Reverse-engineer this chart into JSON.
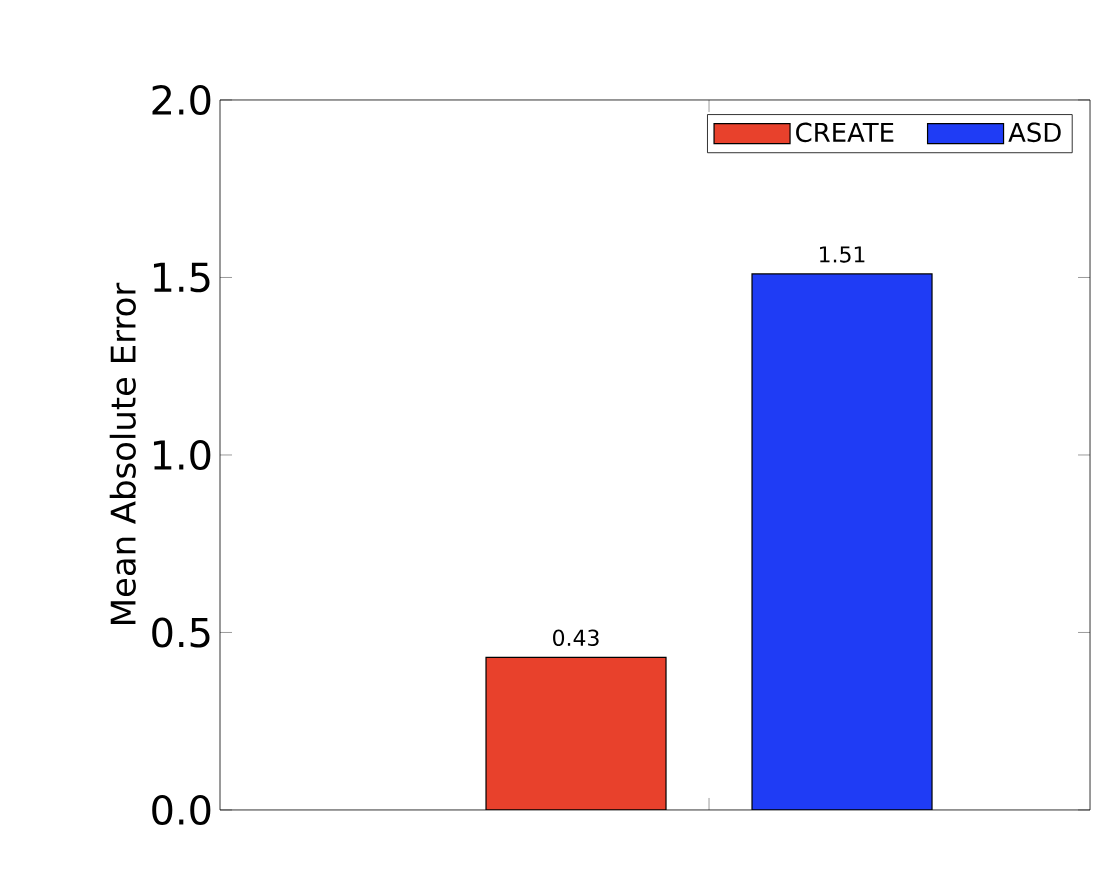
{
  "chart_data": {
    "type": "bar",
    "ylabel": "Mean Absolute Error",
    "categories": [
      null
    ],
    "series": [
      {
        "name": "CREATE",
        "color": "#e8412c",
        "values": [
          0.43
        ]
      },
      {
        "name": "ASD",
        "color": "#1f3cf5",
        "values": [
          1.51
        ]
      }
    ],
    "ylim": [
      0,
      2.0
    ],
    "yticks": [
      {
        "value": 0,
        "label": "0.0"
      },
      {
        "value": 0.5,
        "label": "0.5"
      },
      {
        "value": 1.0,
        "label": "1.0"
      },
      {
        "value": 1.5,
        "label": "1.5"
      },
      {
        "value": 2.0,
        "label": "2.0"
      }
    ],
    "data_labels": true,
    "legend": "top right",
    "grid": false
  }
}
